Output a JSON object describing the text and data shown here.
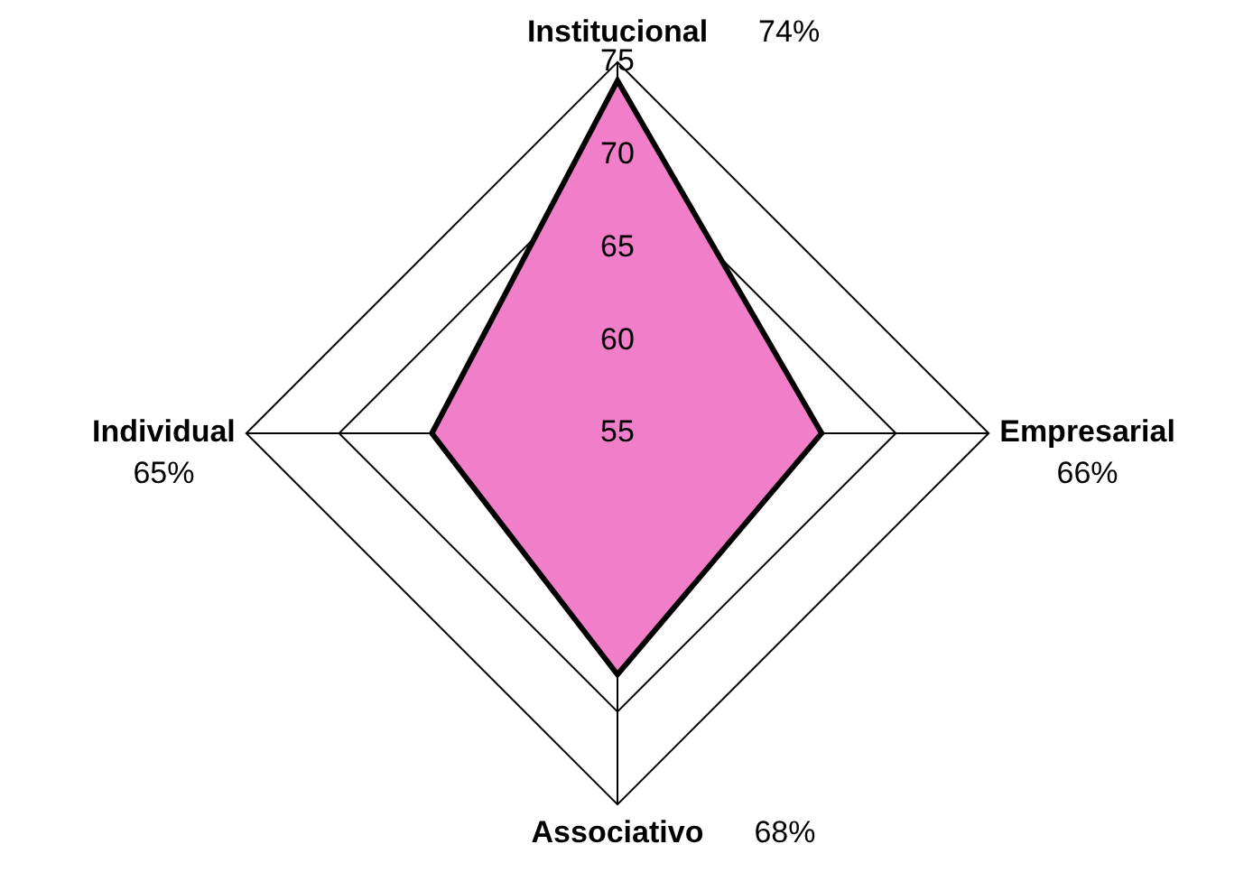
{
  "chart_data": {
    "type": "radar",
    "categories": [
      "Institucional",
      "Empresarial",
      "Associativo",
      "Individual"
    ],
    "series": [
      {
        "color": "#f07ec8",
        "values": [
          74,
          66,
          68,
          65
        ]
      }
    ],
    "annotations": [
      "74%",
      "66%",
      "68%",
      "65%"
    ],
    "ylim": [
      55,
      75
    ],
    "yticks": [
      55,
      60,
      65,
      70,
      75
    ],
    "grid": true,
    "marker": "none",
    "legend": false
  }
}
